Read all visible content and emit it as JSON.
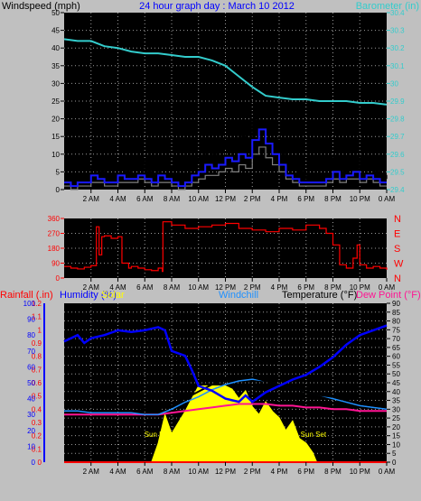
{
  "colors": {
    "background": "#c0c0c0",
    "plot": "#000000",
    "grid": "#9a9a9a",
    "wind_gust": "#000000",
    "wind_avg": "#1a1aff",
    "wind_raw": "#808080",
    "barometer": "#33cccc",
    "direction": "#ff0000",
    "rain": "#ff0000",
    "humidity": "#0000ff",
    "solar": "#ffff00",
    "windchill": "#1e90ff",
    "temperature": "#000000",
    "dewpoint": "#ff1493"
  },
  "chart_data": [
    {
      "type": "line",
      "title": "24 hour graph day : March 10 2012",
      "left_axis_label": "Windspeed (mph)",
      "right_axis_label": "Barometer (in)",
      "x_tick_labels": [
        "2 AM",
        "4 AM",
        "6 AM",
        "8 AM",
        "10 AM",
        "12 PM",
        "2 PM",
        "4 PM",
        "6 PM",
        "8 PM",
        "10 PM",
        "0 AM"
      ],
      "x_range_hours": [
        0,
        24
      ],
      "y_left_range": [
        0,
        50
      ],
      "y_left_ticks": [
        "0",
        "5",
        "10",
        "15",
        "20",
        "25",
        "30",
        "35",
        "40",
        "45",
        "50"
      ],
      "y_right_range": [
        29.4,
        30.4
      ],
      "y_right_ticks": [
        "29.4",
        "29.5",
        "29.6",
        "29.7",
        "29.8",
        "29.9",
        "30",
        "30.1",
        "30.2",
        "30.3",
        "30.4"
      ],
      "series": [
        {
          "key": "wind_gust",
          "color": "#000000",
          "x": [
            0,
            0.5,
            1,
            1.5,
            2,
            2.5,
            3,
            3.5,
            4,
            4.5,
            5,
            5.5,
            6,
            6.5,
            7,
            7.5,
            8,
            8.5,
            9,
            9.5,
            10,
            10.5,
            11,
            11.5,
            12,
            12.5,
            13,
            13.5,
            14,
            14.5,
            15,
            15.5,
            16,
            16.5,
            17,
            17.5,
            18,
            18.5,
            19,
            19.5,
            20,
            20.5,
            21,
            21.5,
            22,
            22.5,
            23,
            23.5,
            24
          ],
          "y": [
            3,
            2,
            4,
            3,
            6,
            5,
            4,
            3,
            7,
            5,
            6,
            8,
            5,
            4,
            7,
            6,
            3,
            2,
            4,
            8,
            9,
            11,
            10,
            12,
            14,
            12,
            15,
            13,
            20,
            23,
            18,
            14,
            10,
            7,
            6,
            5,
            3,
            4,
            3,
            6,
            9,
            5,
            7,
            9,
            6,
            7,
            5,
            4,
            3
          ]
        },
        {
          "key": "wind_avg",
          "color": "#1a1aff",
          "x": [
            0,
            0.5,
            1,
            1.5,
            2,
            2.5,
            3,
            3.5,
            4,
            4.5,
            5,
            5.5,
            6,
            6.5,
            7,
            7.5,
            8,
            8.5,
            9,
            9.5,
            10,
            10.5,
            11,
            11.5,
            12,
            12.5,
            13,
            13.5,
            14,
            14.5,
            15,
            15.5,
            16,
            16.5,
            17,
            17.5,
            18,
            18.5,
            19,
            19.5,
            20,
            20.5,
            21,
            21.5,
            22,
            22.5,
            23,
            23.5,
            24
          ],
          "y": [
            2,
            1,
            2,
            2,
            4,
            3,
            2,
            2,
            4,
            3,
            3,
            4,
            3,
            2,
            4,
            3,
            2,
            1,
            2,
            4,
            5,
            7,
            6,
            7,
            9,
            8,
            10,
            9,
            14,
            17,
            13,
            10,
            7,
            4,
            3,
            2,
            2,
            2,
            2,
            3,
            5,
            3,
            4,
            5,
            3,
            4,
            3,
            2,
            2
          ]
        },
        {
          "key": "wind_raw",
          "color": "#808080",
          "x": [
            0,
            0.5,
            1,
            1.5,
            2,
            2.5,
            3,
            3.5,
            4,
            4.5,
            5,
            5.5,
            6,
            6.5,
            7,
            7.5,
            8,
            8.5,
            9,
            9.5,
            10,
            10.5,
            11,
            11.5,
            12,
            12.5,
            13,
            13.5,
            14,
            14.5,
            15,
            15.5,
            16,
            16.5,
            17,
            17.5,
            18,
            18.5,
            19,
            19.5,
            20,
            20.5,
            21,
            21.5,
            22,
            22.5,
            23,
            23.5,
            24
          ],
          "y": [
            1,
            0,
            1,
            1,
            2,
            2,
            1,
            1,
            2,
            2,
            2,
            3,
            2,
            1,
            2,
            2,
            1,
            0,
            1,
            2,
            3,
            4,
            4,
            5,
            6,
            5,
            7,
            6,
            10,
            12,
            9,
            7,
            5,
            3,
            2,
            1,
            1,
            1,
            1,
            2,
            3,
            2,
            3,
            3,
            2,
            3,
            2,
            1,
            1
          ]
        },
        {
          "key": "barometer",
          "color": "#33cccc",
          "axis": "right",
          "x": [
            0,
            1,
            2,
            3,
            4,
            5,
            6,
            7,
            8,
            9,
            10,
            11,
            12,
            13,
            14,
            15,
            16,
            17,
            18,
            19,
            20,
            21,
            22,
            23,
            24
          ],
          "y": [
            30.25,
            30.24,
            30.24,
            30.21,
            30.2,
            30.18,
            30.17,
            30.17,
            30.16,
            30.15,
            30.15,
            30.13,
            30.1,
            30.04,
            29.98,
            29.93,
            29.92,
            29.91,
            29.91,
            29.9,
            29.9,
            29.9,
            29.89,
            29.89,
            29.88
          ]
        }
      ]
    },
    {
      "type": "line",
      "y_range": [
        0,
        360
      ],
      "y_ticks": [
        "0",
        "90",
        "180",
        "270",
        "360"
      ],
      "right_tick_labels": [
        "N",
        "W",
        "S",
        "E",
        "N"
      ],
      "x_tick_labels": [
        "2 AM",
        "4 AM",
        "6 AM",
        "8 AM",
        "10 AM",
        "12 PM",
        "2 PM",
        "4 PM",
        "6 PM",
        "8 PM",
        "10 PM",
        "0 AM"
      ],
      "series": [
        {
          "key": "direction",
          "color": "#ff0000",
          "x": [
            0,
            0.5,
            1,
            1.5,
            2,
            2.4,
            2.6,
            2.8,
            3,
            3.5,
            4,
            4.3,
            4.8,
            5,
            5.5,
            6,
            6.5,
            7,
            7.3,
            7.35,
            8,
            9,
            10,
            11,
            12,
            13,
            14,
            15,
            16,
            17,
            18,
            19,
            19.5,
            20,
            20.5,
            21,
            21.5,
            21.8,
            22,
            22.5,
            23,
            23.5,
            24
          ],
          "y": [
            70,
            60,
            55,
            65,
            75,
            310,
            140,
            250,
            255,
            240,
            250,
            90,
            60,
            70,
            60,
            50,
            45,
            60,
            40,
            340,
            320,
            300,
            310,
            320,
            330,
            300,
            290,
            280,
            300,
            290,
            320,
            300,
            270,
            200,
            80,
            60,
            120,
            200,
            80,
            60,
            70,
            60,
            50
          ]
        }
      ]
    },
    {
      "type": "line",
      "labels": {
        "rain": "Rainfall (.in)",
        "humidity": "Humidity (%)",
        "solar": "Solar",
        "windchill": "Windchill",
        "temperature": "Temperature (°F)",
        "dewpoint": "Dew Point (°F)"
      },
      "rain_ticks": [
        "0",
        "0.1",
        "0.2",
        "0.3",
        "0.4",
        "0.5",
        "0.6",
        "0.7",
        "0.8",
        "0.9",
        "1",
        "1.1",
        "1.2"
      ],
      "humidity_ticks": [
        "0",
        "10",
        "20",
        "30",
        "40",
        "50",
        "60",
        "70",
        "80",
        "90",
        "100"
      ],
      "temp_ticks": [
        "0",
        "5",
        "10",
        "15",
        "20",
        "25",
        "30",
        "35",
        "40",
        "45",
        "50",
        "55",
        "60",
        "65",
        "70",
        "75",
        "80",
        "85",
        "90"
      ],
      "x_tick_labels": [
        "2 AM",
        "4 AM",
        "6 AM",
        "8 AM",
        "10 AM",
        "12 PM",
        "2 PM",
        "4 PM",
        "6 PM",
        "8 PM",
        "10 PM",
        "0 AM"
      ],
      "sun_rise_label": "Sun Rise",
      "sun_set_label": "Sun Set",
      "sun_rise_hour": 6.5,
      "sun_set_hour": 18.8,
      "series": [
        {
          "key": "humidity",
          "color": "#0000ff",
          "axis": "humidity",
          "x": [
            0,
            1,
            1.5,
            2,
            3,
            4,
            5,
            6,
            7,
            7.5,
            8,
            9,
            9.5,
            10,
            11,
            12,
            13,
            13.5,
            14,
            15,
            16,
            17,
            18,
            19,
            20,
            21,
            22,
            23,
            24
          ],
          "y": [
            76,
            80,
            75,
            78,
            80,
            83,
            82,
            83,
            85,
            83,
            70,
            67,
            58,
            48,
            45,
            40,
            38,
            42,
            38,
            44,
            48,
            52,
            55,
            60,
            66,
            74,
            80,
            83,
            86
          ]
        },
        {
          "key": "temperature",
          "color": "#000000",
          "axis": "temp",
          "x": [
            0,
            1,
            2,
            3,
            4,
            5,
            6,
            7,
            8,
            9,
            10,
            11,
            12,
            13,
            14,
            15,
            16,
            17,
            18,
            19,
            20,
            21,
            22,
            23,
            24
          ],
          "y": [
            34,
            33,
            32,
            32,
            31,
            31,
            30,
            30,
            33,
            36,
            40,
            44,
            47,
            49,
            48,
            46,
            44,
            42,
            40,
            38,
            37,
            35,
            33,
            32,
            31
          ]
        },
        {
          "key": "windchill",
          "color": "#1e90ff",
          "axis": "temp",
          "x": [
            0,
            1,
            2,
            3,
            4,
            5,
            6,
            7,
            8,
            9,
            10,
            11,
            12,
            13,
            14,
            15,
            16,
            17,
            18,
            19,
            20,
            21,
            22,
            23,
            24
          ],
          "y": [
            29,
            29,
            28,
            28,
            28,
            28,
            27,
            27,
            30,
            34,
            37,
            41,
            44,
            46,
            47,
            46,
            44,
            42,
            40,
            38,
            36,
            34,
            32,
            31,
            30
          ]
        },
        {
          "key": "dewpoint",
          "color": "#ff1493",
          "axis": "temp",
          "x": [
            0,
            1,
            2,
            3,
            4,
            5,
            6,
            7,
            8,
            9,
            10,
            11,
            12,
            13,
            14,
            15,
            16,
            17,
            18,
            19,
            20,
            21,
            22,
            23,
            24
          ],
          "y": [
            27,
            27,
            27,
            27,
            27,
            27,
            27,
            27,
            28,
            29,
            30,
            31,
            32,
            33,
            33,
            33,
            32,
            32,
            31,
            31,
            30,
            30,
            29,
            29,
            29
          ]
        },
        {
          "key": "solar",
          "color": "#ffff00",
          "axis": "humidity",
          "x": [
            6.5,
            7,
            7.5,
            8,
            8.5,
            9,
            9.5,
            10,
            10.5,
            11,
            11.5,
            12,
            12.5,
            13,
            13.5,
            14,
            14.5,
            15,
            15.5,
            16,
            16.5,
            17,
            17.5,
            18,
            18.5,
            18.8
          ],
          "y": [
            0,
            12,
            30,
            18,
            25,
            32,
            40,
            48,
            48,
            48,
            48,
            48,
            46,
            40,
            45,
            35,
            30,
            38,
            32,
            28,
            20,
            26,
            15,
            12,
            6,
            0
          ]
        },
        {
          "key": "rain",
          "color": "#ff0000",
          "axis": "rain",
          "x": [
            0,
            24
          ],
          "y": [
            0,
            0
          ]
        }
      ]
    }
  ]
}
